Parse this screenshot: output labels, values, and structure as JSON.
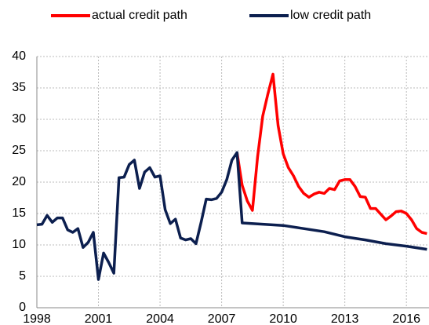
{
  "chart_data": {
    "type": "line",
    "series": [
      {
        "name": "actual credit path",
        "color": "#ff0000",
        "x": [
          2007.75,
          2008.0,
          2008.25,
          2008.5,
          2008.75,
          2009.0,
          2009.25,
          2009.5,
          2009.75,
          2010.0,
          2010.25,
          2010.5,
          2010.75,
          2011.0,
          2011.25,
          2011.5,
          2011.75,
          2012.0,
          2012.25,
          2012.5,
          2012.75,
          2013.0,
          2013.25,
          2013.5,
          2013.75,
          2014.0,
          2014.25,
          2014.5,
          2014.75,
          2015.0,
          2015.25,
          2015.5,
          2015.75,
          2016.0,
          2016.25,
          2016.5,
          2016.75,
          2017.0
        ],
        "values": [
          24.7,
          19.5,
          17.0,
          15.5,
          24.0,
          30.5,
          34.0,
          37.2,
          29.0,
          24.5,
          22.3,
          21.0,
          19.3,
          18.2,
          17.6,
          18.1,
          18.4,
          18.2,
          19.0,
          18.8,
          20.2,
          20.4,
          20.4,
          19.3,
          17.7,
          17.6,
          15.8,
          15.8,
          14.9,
          14.0,
          14.6,
          15.3,
          15.4,
          15.0,
          14.0,
          12.6,
          12.0,
          11.8
        ]
      },
      {
        "name": "low credit path",
        "color": "#0c1f4f",
        "x": [
          1998.0,
          1998.25,
          1998.5,
          1998.75,
          1999.0,
          1999.25,
          1999.5,
          1999.75,
          2000.0,
          2000.25,
          2000.5,
          2000.75,
          2001.0,
          2001.25,
          2001.5,
          2001.75,
          2002.0,
          2002.25,
          2002.5,
          2002.75,
          2003.0,
          2003.25,
          2003.5,
          2003.75,
          2004.0,
          2004.25,
          2004.5,
          2004.75,
          2005.0,
          2005.25,
          2005.5,
          2005.75,
          2006.0,
          2006.25,
          2006.5,
          2006.75,
          2007.0,
          2007.25,
          2007.5,
          2007.75,
          2008.0,
          2009.0,
          2010.0,
          2011.0,
          2012.0,
          2013.0,
          2014.0,
          2015.0,
          2016.0,
          2017.0
        ],
        "values": [
          13.2,
          13.3,
          14.7,
          13.6,
          14.3,
          14.3,
          12.4,
          12.0,
          12.6,
          9.6,
          10.4,
          12.0,
          4.5,
          8.7,
          7.2,
          5.5,
          20.7,
          20.8,
          22.8,
          23.5,
          19.0,
          21.6,
          22.3,
          20.8,
          21.0,
          15.6,
          13.4,
          14.1,
          11.1,
          10.8,
          11.0,
          10.2,
          13.6,
          17.3,
          17.2,
          17.4,
          18.4,
          20.4,
          23.5,
          24.7,
          13.5,
          13.3,
          13.1,
          12.6,
          12.1,
          11.3,
          10.8,
          10.2,
          9.8,
          9.3
        ]
      }
    ],
    "xlim": [
      1998,
      2017.1
    ],
    "xticks": [
      1998,
      2001,
      2004,
      2007,
      2010,
      2013,
      2016
    ],
    "ylim": [
      0,
      40
    ],
    "yticks": [
      0,
      5,
      10,
      15,
      20,
      25,
      30,
      35,
      40
    ],
    "grid": true
  }
}
